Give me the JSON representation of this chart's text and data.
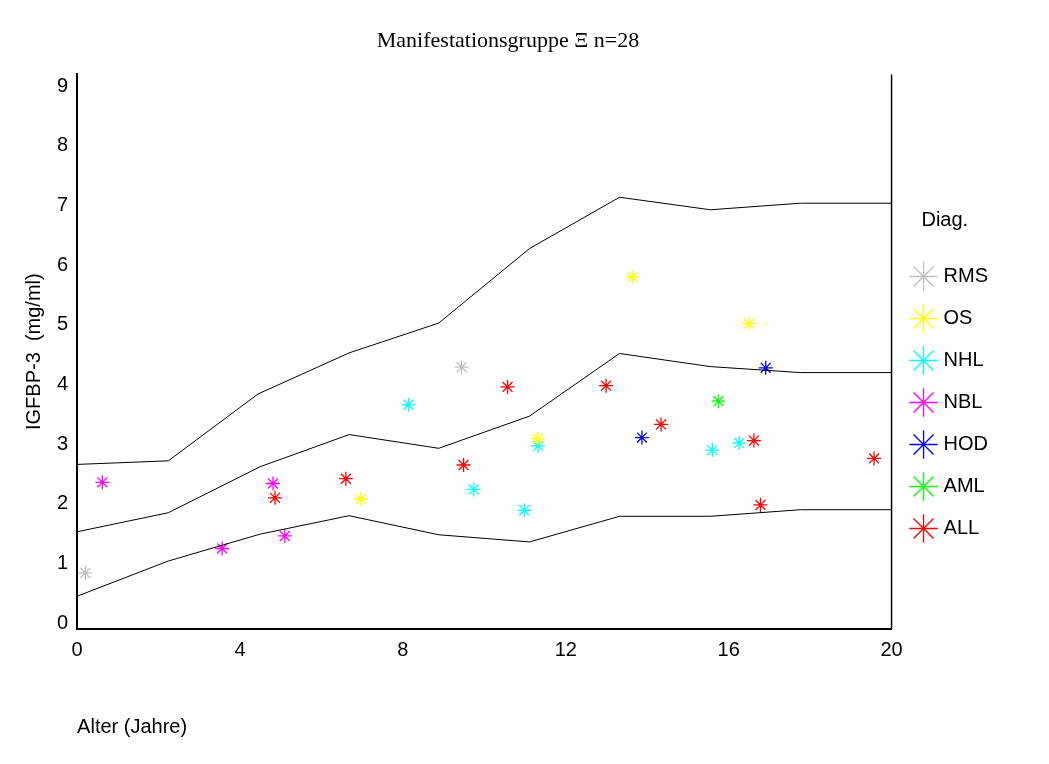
{
  "chart_data": {
    "type": "scatter",
    "title": "Manifestationsgruppe Ξ n=28",
    "xlabel": "Alter (Jahre)",
    "ylabel": "IGFBP-3  (mg/ml)",
    "legend_title": "Diag.",
    "legend": "right",
    "grid": false,
    "marker": "cross",
    "xlim": [
      0,
      20
    ],
    "xticks": [
      0,
      4,
      8,
      12,
      16,
      20
    ],
    "ylim": [
      -0.1,
      9.2
    ],
    "yticks": [
      0,
      1,
      2,
      3,
      4,
      5,
      6,
      7,
      8,
      9
    ],
    "series": [
      {
        "type": "line",
        "color": "#000000",
        "marker": "none",
        "x": [
          0,
          2.24,
          4.44,
          6.68,
          8.88,
          11.11,
          13.32,
          15.55,
          17.76,
          20
        ],
        "values": [
          2.66,
          2.72,
          3.84,
          4.53,
          5.03,
          6.28,
          7.14,
          6.93,
          7.04,
          7.04
        ]
      },
      {
        "type": "line",
        "color": "#000000",
        "marker": "none",
        "x": [
          0,
          2.24,
          4.49,
          6.68,
          8.88,
          11.11,
          13.32,
          15.55,
          17.76,
          20
        ],
        "values": [
          1.53,
          1.85,
          2.62,
          3.16,
          2.93,
          3.47,
          4.52,
          4.3,
          4.2,
          4.2
        ]
      },
      {
        "type": "line",
        "color": "#000000",
        "marker": "none",
        "x": [
          0,
          2.24,
          4.49,
          6.68,
          8.88,
          11.11,
          13.32,
          15.55,
          17.76,
          20
        ],
        "values": [
          0.45,
          1.04,
          1.49,
          1.8,
          1.48,
          1.36,
          1.79,
          1.79,
          1.9,
          1.9
        ]
      },
      {
        "name": "RMS",
        "color": "#c0c0c0",
        "x": [
          0.2,
          9.44
        ],
        "values": [
          0.84,
          4.29
        ]
      },
      {
        "name": "OS",
        "color": "#ffff00",
        "x": [
          6.97,
          11.31,
          13.64,
          16.5
        ],
        "values": [
          2.08,
          3.09,
          5.8,
          5.02
        ]
      },
      {
        "name": "NHL",
        "color": "#00ffff",
        "x": [
          8.14,
          9.74,
          11.32,
          10.98,
          15.6,
          16.26
        ],
        "values": [
          3.66,
          2.24,
          2.97,
          1.89,
          2.9,
          3.02
        ]
      },
      {
        "name": "NBL",
        "color": "#ff00ff",
        "x": [
          0.62,
          4.81,
          3.56,
          5.1
        ],
        "values": [
          2.36,
          2.34,
          1.25,
          1.46
        ]
      },
      {
        "name": "HOD",
        "color": "#0000ff",
        "x": [
          13.87,
          16.91
        ],
        "values": [
          3.11,
          4.28
        ]
      },
      {
        "name": "AML",
        "color": "#00ff00",
        "x": [
          15.75
        ],
        "values": [
          3.72
        ]
      },
      {
        "name": "ALL",
        "color": "#ff0000",
        "x": [
          4.86,
          6.6,
          9.49,
          10.57,
          12.99,
          14.34,
          16.62,
          16.78,
          19.57
        ],
        "values": [
          2.1,
          2.42,
          2.65,
          3.96,
          3.98,
          3.33,
          3.06,
          1.98,
          2.76
        ]
      }
    ]
  }
}
